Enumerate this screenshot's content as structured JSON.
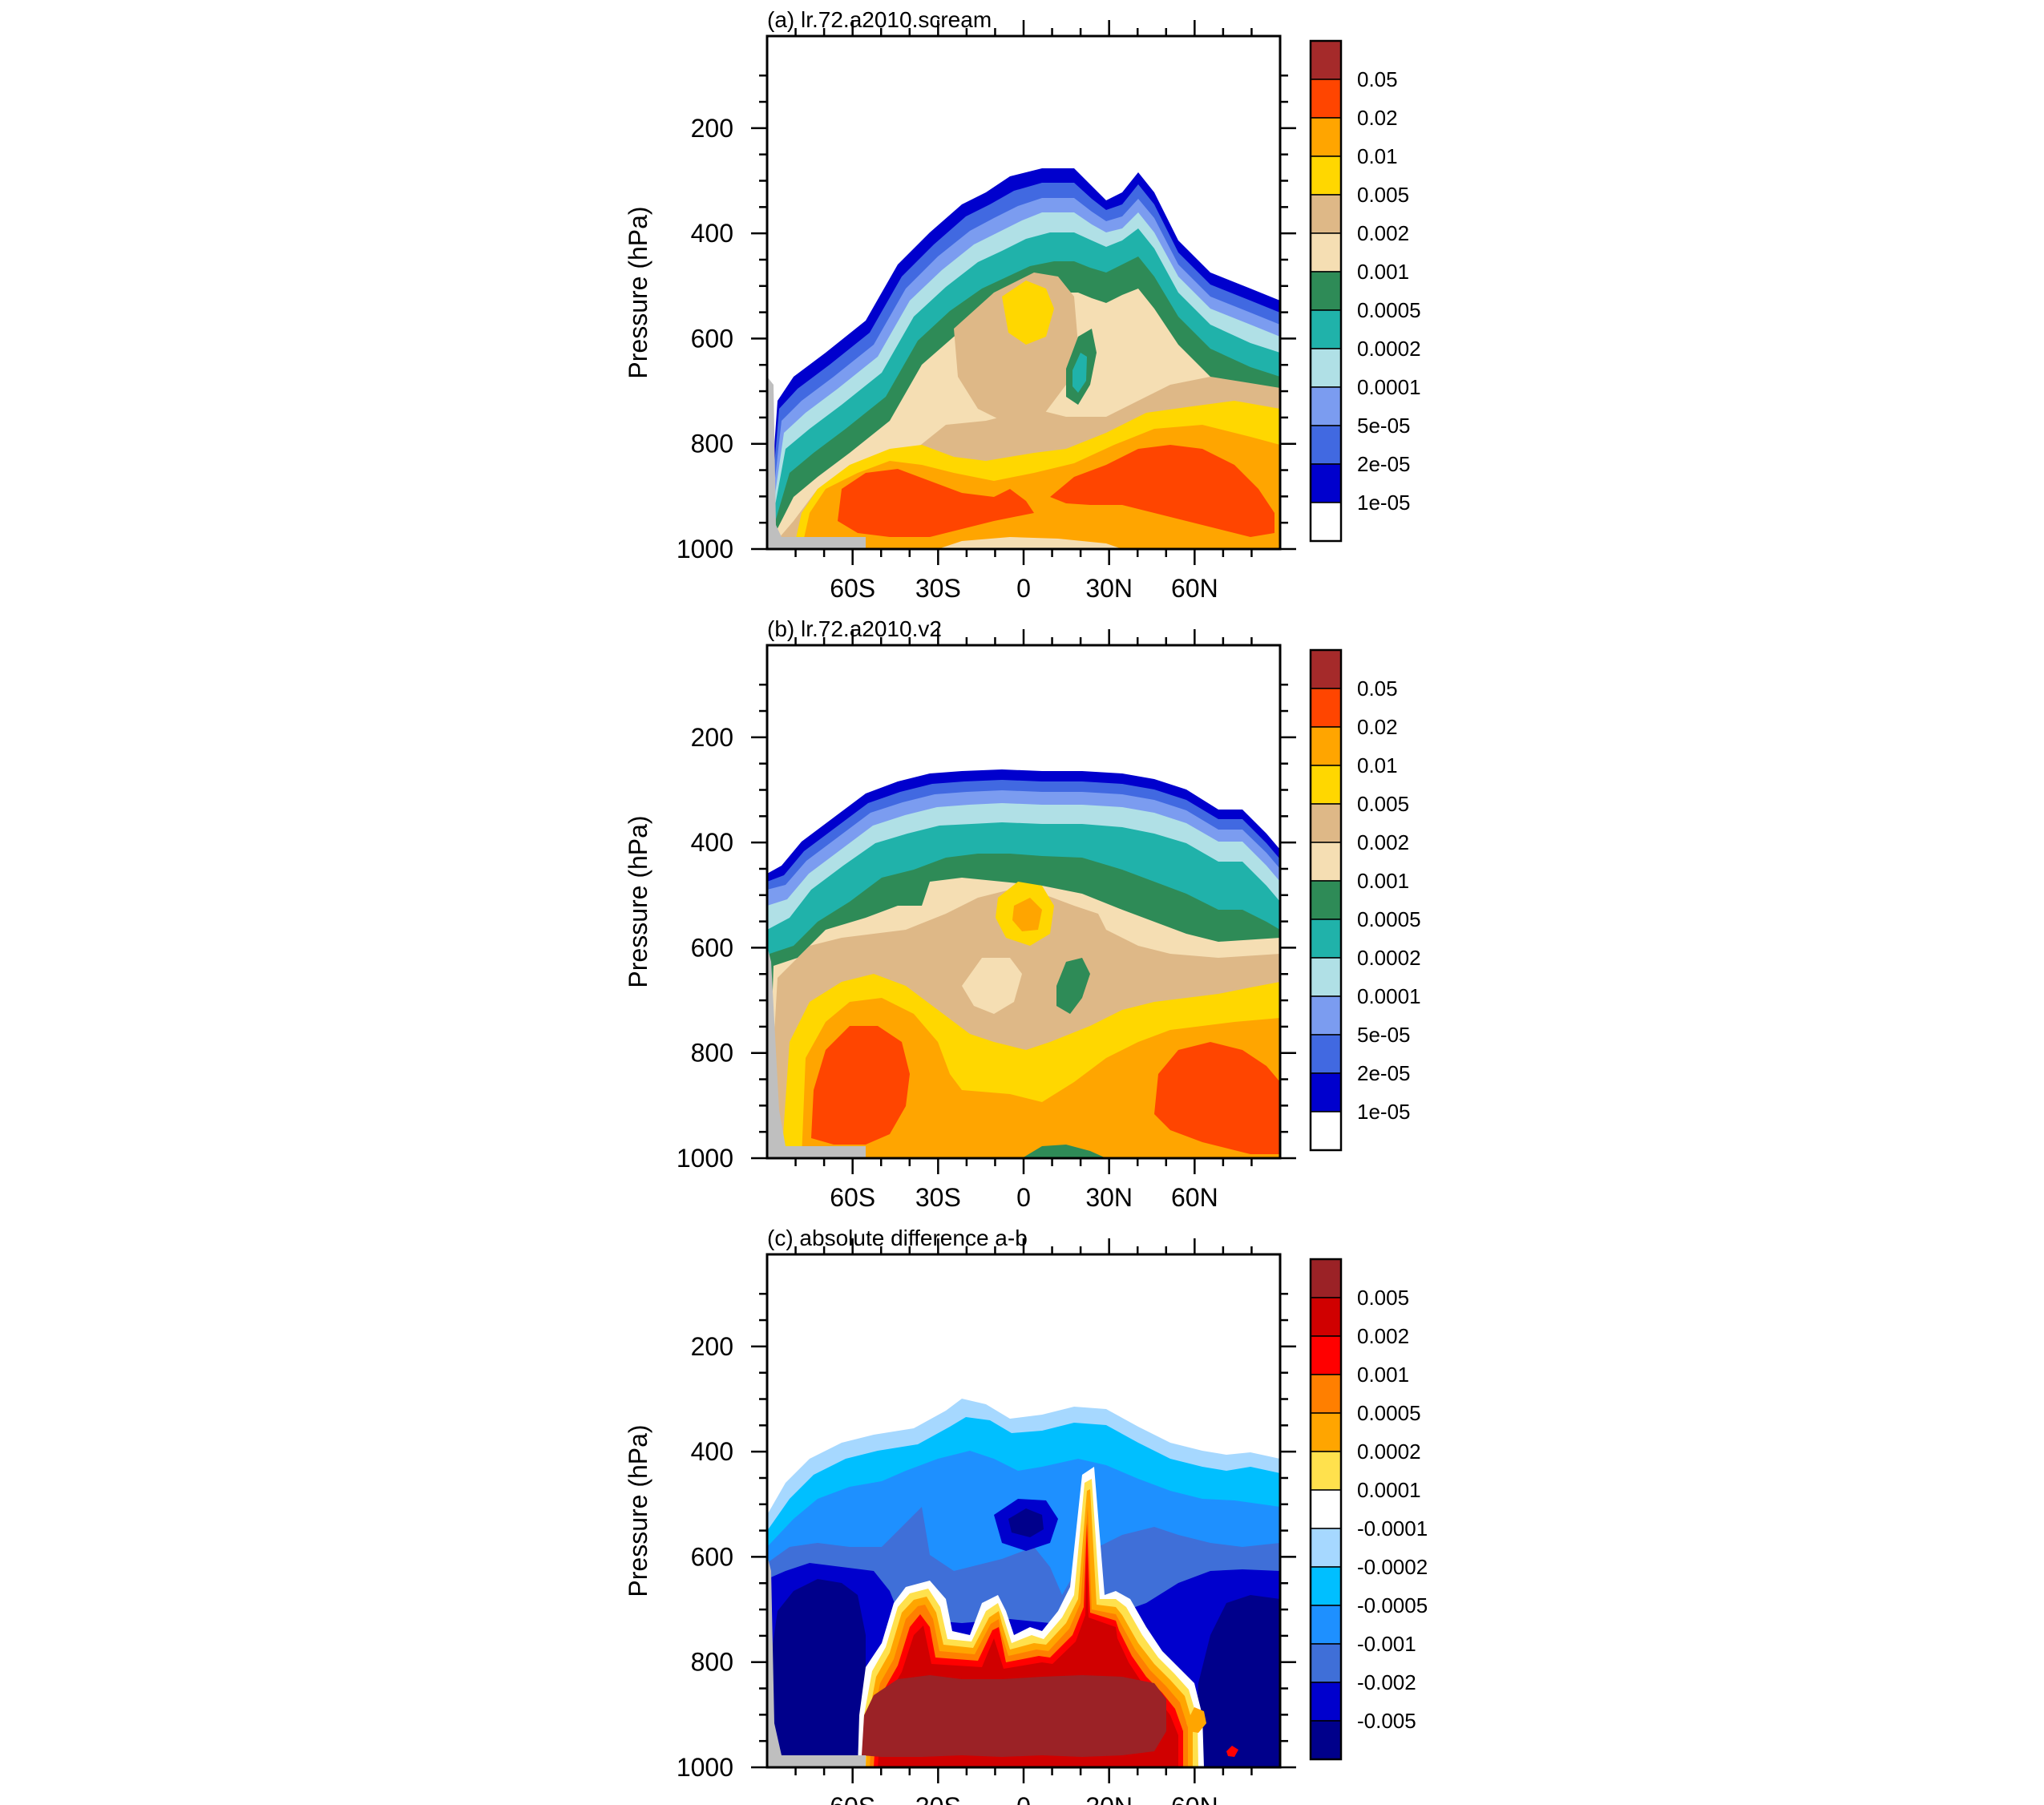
{
  "figure": {
    "panels": [
      {
        "title": "(a) lr.72.a2010.scream",
        "ylabel": "Pressure (hPa)",
        "y_ticks": [
          "200",
          "400",
          "600",
          "800",
          "1000"
        ],
        "x_ticks": [
          "60S",
          "30S",
          "0",
          "30N",
          "60N"
        ],
        "colorbar_labels": [
          "0.05",
          "0.02",
          "0.01",
          "0.005",
          "0.002",
          "0.001",
          "0.0005",
          "0.0002",
          "0.0001",
          "5e-05",
          "2e-05",
          "1e-05"
        ],
        "colorbar_colors": [
          "#a52a2a",
          "#ff4500",
          "#ffa500",
          "#ffd700",
          "#deb887",
          "#f5deb3",
          "#2e8b57",
          "#20b2aa",
          "#b0e0e6",
          "#7b9cf0",
          "#4169e1",
          "#0000cd",
          "#ffffff"
        ]
      },
      {
        "title": "(b) lr.72.a2010.v2",
        "ylabel": "Pressure (hPa)",
        "y_ticks": [
          "200",
          "400",
          "600",
          "800",
          "1000"
        ],
        "x_ticks": [
          "60S",
          "30S",
          "0",
          "30N",
          "60N"
        ],
        "colorbar_labels": [
          "0.05",
          "0.02",
          "0.01",
          "0.005",
          "0.002",
          "0.001",
          "0.0005",
          "0.0002",
          "0.0001",
          "5e-05",
          "2e-05",
          "1e-05"
        ],
        "colorbar_colors": [
          "#a52a2a",
          "#ff4500",
          "#ffa500",
          "#ffd700",
          "#deb887",
          "#f5deb3",
          "#2e8b57",
          "#20b2aa",
          "#b0e0e6",
          "#7b9cf0",
          "#4169e1",
          "#0000cd",
          "#ffffff"
        ]
      },
      {
        "title": "(c) absolute difference a-b",
        "ylabel": "Pressure (hPa)",
        "y_ticks": [
          "200",
          "400",
          "600",
          "800",
          "1000"
        ],
        "x_ticks": [
          "60S",
          "30S",
          "0",
          "30N",
          "60N"
        ],
        "colorbar_labels": [
          "0.005",
          "0.002",
          "0.001",
          "0.0005",
          "0.0002",
          "0.0001",
          "-0.0001",
          "-0.0002",
          "-0.0005",
          "-0.001",
          "-0.002",
          "-0.005"
        ],
        "colorbar_colors": [
          "#9b2226",
          "#d00000",
          "#ff0000",
          "#ff7f00",
          "#ffa500",
          "#ffe14d",
          "#ffffff",
          "#a6d8ff",
          "#00bfff",
          "#1e90ff",
          "#3f6fd8",
          "#0000cd",
          "#00008b"
        ]
      }
    ]
  },
  "chart_data": [
    {
      "type": "heatmap",
      "title": "(a) lr.72.a2010.scream",
      "xlabel": "",
      "ylabel": "Pressure (hPa)",
      "x_ticks": [
        "60S",
        "30S",
        "0",
        "30N",
        "60N"
      ],
      "xlim": [
        -90,
        90
      ],
      "ylim": [
        1000,
        25
      ],
      "colorbar_levels": [
        1e-05,
        2e-05,
        5e-05,
        0.0001,
        0.0002,
        0.0005,
        0.001,
        0.002,
        0.005,
        0.01,
        0.02,
        0.05
      ],
      "features": [
        {
          "field_level": 0.02,
          "lat_range": [
            -62,
            -15
          ],
          "pressure_range": [
            830,
            980
          ]
        },
        {
          "field_level": 0.02,
          "lat_range": [
            15,
            76
          ],
          "pressure_range": [
            820,
            980
          ]
        },
        {
          "field_level": 0.005,
          "lat_range": [
            -6,
            10
          ],
          "pressure_range": [
            470,
            580
          ]
        },
        {
          "field_level": 0.0005,
          "lat_range": [
            11,
            22
          ],
          "pressure_range": [
            600,
            720
          ]
        },
        {
          "field_level": 1e-05,
          "top_pressure_min": 285
        }
      ]
    },
    {
      "type": "heatmap",
      "title": "(b) lr.72.a2010.v2",
      "xlabel": "",
      "ylabel": "Pressure (hPa)",
      "x_ticks": [
        "60S",
        "30S",
        "0",
        "30N",
        "60N"
      ],
      "xlim": [
        -90,
        90
      ],
      "ylim": [
        1000,
        25
      ],
      "colorbar_levels": [
        1e-05,
        2e-05,
        5e-05,
        0.0001,
        0.0002,
        0.0005,
        0.001,
        0.002,
        0.005,
        0.01,
        0.02,
        0.05
      ],
      "features": [
        {
          "field_level": 0.02,
          "lat_range": [
            -66,
            -38
          ],
          "pressure_range": [
            760,
            960
          ]
        },
        {
          "field_level": 0.02,
          "lat_range": [
            48,
            90
          ],
          "pressure_range": [
            790,
            960
          ]
        },
        {
          "field_level": 0.01,
          "lat_range": [
            -8,
            6
          ],
          "pressure_range": [
            520,
            620
          ]
        },
        {
          "field_level": 0.0005,
          "lat_range": [
            9,
            20
          ],
          "pressure_range": [
            610,
            700
          ]
        },
        {
          "field_level": 1e-05,
          "top_pressure_min": 265
        }
      ]
    },
    {
      "type": "heatmap",
      "title": "(c) absolute difference a-b",
      "xlabel": "",
      "ylabel": "Pressure (hPa)",
      "x_ticks": [
        "60S",
        "30S",
        "0",
        "30N",
        "60N"
      ],
      "xlim": [
        -90,
        90
      ],
      "ylim": [
        1000,
        25
      ],
      "colorbar_levels": [
        -0.005,
        -0.002,
        -0.001,
        -0.0005,
        -0.0002,
        -0.0001,
        0.0001,
        0.0002,
        0.0005,
        0.001,
        0.002,
        0.005
      ],
      "features": [
        {
          "field_level": 0.005,
          "lat_range": [
            -56,
            48
          ],
          "pressure_range": [
            830,
            975
          ]
        },
        {
          "field_level": -0.005,
          "lat_range": [
            -86,
            -52
          ],
          "pressure_range": [
            620,
            990
          ]
        },
        {
          "field_level": -0.005,
          "lat_range": [
            -6,
            6
          ],
          "pressure_range": [
            510,
            570
          ]
        },
        {
          "field_level": 0.001,
          "lat_range": [
            27,
            31
          ],
          "pressure_range": [
            480,
            830
          ]
        }
      ]
    }
  ]
}
